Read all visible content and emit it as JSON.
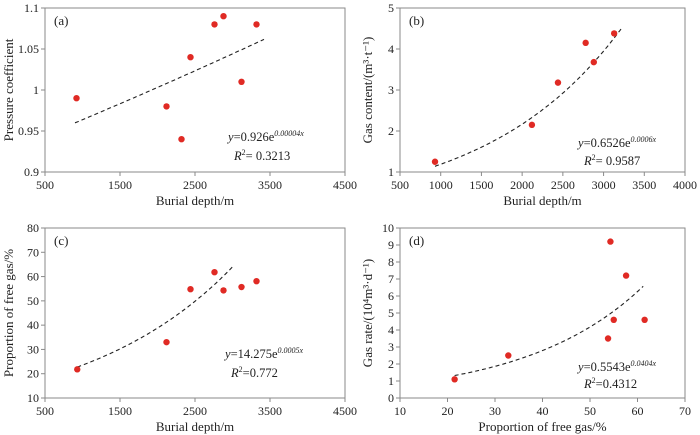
{
  "colors": {
    "point": "#e02a24",
    "axis": "#8a8a8a",
    "trend": "#222222"
  },
  "chart_data": [
    {
      "panel": "(a)",
      "type": "scatter",
      "xlabel": "Burial depth/m",
      "ylabel": "Pressure coefficient",
      "xlim": [
        500,
        4500
      ],
      "ylim": [
        0.9,
        1.1
      ],
      "xticks": [
        500,
        1500,
        2500,
        3500,
        4500
      ],
      "yticks": [
        0.9,
        0.95,
        1,
        1.05,
        1.1
      ],
      "yfmt": "trim",
      "points": [
        [
          920,
          0.99
        ],
        [
          2120,
          0.98
        ],
        [
          2320,
          0.94
        ],
        [
          2440,
          1.04
        ],
        [
          2760,
          1.08
        ],
        [
          2880,
          1.09
        ],
        [
          3120,
          1.01
        ],
        [
          3320,
          1.08
        ]
      ],
      "trend": {
        "a": 0.926,
        "b": 4e-05,
        "x": [
          900,
          3420
        ]
      },
      "equation": {
        "prefix": "y=0.926e",
        "exponent": "0.00004x",
        "r2": "= 0.3213"
      }
    },
    {
      "panel": "(b)",
      "type": "scatter",
      "xlabel": "Burial depth/m",
      "ylabel": "Gas content/(m³·t⁻¹)",
      "xlim": [
        500,
        4000
      ],
      "ylim": [
        1,
        5
      ],
      "xticks": [
        500,
        1000,
        1500,
        2000,
        2500,
        3000,
        3500,
        4000
      ],
      "yticks": [
        1,
        2,
        3,
        4,
        5
      ],
      "yfmt": "int",
      "points": [
        [
          930,
          1.25
        ],
        [
          2120,
          2.15
        ],
        [
          2440,
          3.18
        ],
        [
          2780,
          4.15
        ],
        [
          2880,
          3.68
        ],
        [
          3130,
          4.38
        ]
      ],
      "trend": {
        "a": 0.6526,
        "b": 0.0006,
        "x": [
          930,
          3230
        ]
      },
      "equation": {
        "prefix": "y=0.6526e",
        "exponent": "0.0006x",
        "r2": "= 0.9587"
      }
    },
    {
      "panel": "(c)",
      "type": "scatter",
      "xlabel": "Burial depth/m",
      "ylabel": "Proportion of free gas/%",
      "xlim": [
        500,
        4500
      ],
      "ylim": [
        10,
        80
      ],
      "xticks": [
        500,
        1500,
        2500,
        3500,
        4500
      ],
      "yticks": [
        10,
        20,
        30,
        40,
        50,
        60,
        70,
        80
      ],
      "yfmt": "int",
      "points": [
        [
          930,
          21.8
        ],
        [
          2120,
          33
        ],
        [
          2440,
          54.8
        ],
        [
          2760,
          61.8
        ],
        [
          2880,
          54.3
        ],
        [
          3120,
          55.7
        ],
        [
          3320,
          58.1
        ]
      ],
      "trend": {
        "a": 14.275,
        "b": 0.0005,
        "x": [
          930,
          3020
        ]
      },
      "equation": {
        "prefix": "y=14.275e",
        "exponent": "0.0005x",
        "r2": "=0.772"
      }
    },
    {
      "panel": "(d)",
      "type": "scatter",
      "xlabel": "Proportion of free gas/%",
      "ylabel": "Gas rate/(10⁴m³·d⁻¹)",
      "xlim": [
        10,
        70
      ],
      "ylim": [
        0,
        10
      ],
      "xticks": [
        10,
        20,
        30,
        40,
        50,
        60,
        70
      ],
      "yticks": [
        0,
        1,
        2,
        3,
        4,
        5,
        6,
        7,
        8,
        9,
        10
      ],
      "yfmt": "int",
      "points": [
        [
          21.5,
          1.1
        ],
        [
          32.8,
          2.5
        ],
        [
          53.8,
          3.5
        ],
        [
          54.3,
          9.2
        ],
        [
          55,
          4.6
        ],
        [
          57.6,
          7.2
        ],
        [
          61.5,
          4.6
        ]
      ],
      "trend": {
        "a": 0.5543,
        "b": 0.0404,
        "x": [
          21.5,
          61.2
        ]
      },
      "equation": {
        "prefix": "y=0.5543e",
        "exponent": "0.0404x",
        "r2": "=0.4312"
      }
    }
  ]
}
